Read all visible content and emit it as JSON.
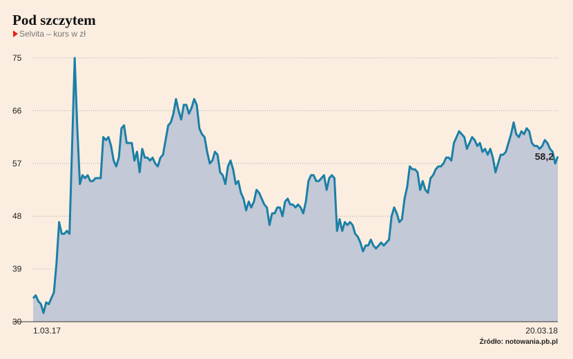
{
  "chart_data": {
    "type": "area",
    "title": "Pod szczytem",
    "subtitle": "Selvita – kurs w zł",
    "source": "Źródło: notowania.pb.pl",
    "color": "#1b7fa6",
    "fill": "#c3c9d6",
    "grid": true,
    "ylim": [
      30,
      75
    ],
    "yticks": [
      30,
      39,
      48,
      57,
      66,
      75
    ],
    "annotations": [
      {
        "text": "58,2",
        "value": 58.2
      }
    ],
    "categories": [
      "1.03.17",
      null,
      null,
      null,
      null,
      null,
      null,
      null,
      null,
      null,
      null,
      null,
      null,
      null,
      null,
      null,
      null,
      null,
      null,
      null,
      null,
      null,
      null,
      null,
      null,
      null,
      null,
      null,
      null,
      null,
      null,
      null,
      null,
      null,
      null,
      null,
      null,
      null,
      null,
      null,
      null,
      null,
      null,
      null,
      null,
      null,
      null,
      null,
      null,
      null,
      null,
      null,
      null,
      null,
      null,
      null,
      null,
      null,
      null,
      null,
      null,
      null,
      null,
      null,
      null,
      null,
      null,
      null,
      null,
      null,
      null,
      null,
      null,
      null,
      null,
      null,
      null,
      null,
      null,
      null,
      null,
      null,
      null,
      null,
      null,
      null,
      null,
      null,
      null,
      null,
      null,
      null,
      null,
      null,
      null,
      null,
      null,
      null,
      null,
      null,
      null,
      null,
      null,
      null,
      null,
      null,
      null,
      null,
      null,
      null,
      null,
      null,
      null,
      null,
      null,
      null,
      null,
      null,
      null,
      null,
      null,
      null,
      null,
      null,
      null,
      null,
      null,
      null,
      null,
      null,
      null,
      null,
      null,
      null,
      null,
      null,
      null,
      null,
      null,
      null,
      null,
      null,
      null,
      null,
      null,
      null,
      null,
      null,
      null,
      null,
      null,
      null,
      null,
      null,
      null,
      null,
      null,
      null,
      null,
      null,
      null,
      null,
      null,
      null,
      null,
      null,
      null,
      null,
      null,
      null,
      null,
      null,
      null,
      null,
      null,
      null,
      null,
      null,
      null,
      null,
      null,
      null,
      null,
      null,
      null,
      null,
      null,
      null,
      null,
      null,
      null,
      null,
      null,
      null,
      null,
      null,
      null,
      null,
      null,
      null,
      null,
      null,
      "20.03.18"
    ],
    "values": [
      34,
      34.5,
      33.5,
      33,
      31.5,
      33.3,
      33,
      34,
      35,
      40,
      47,
      45,
      45,
      45.5,
      45,
      60,
      75,
      63,
      53.5,
      55,
      54.5,
      55,
      54,
      54,
      54.5,
      54.5,
      54.5,
      61.5,
      61,
      61.5,
      60,
      57.5,
      56.5,
      58,
      63,
      63.5,
      60.5,
      60.5,
      60.5,
      57.5,
      59,
      55.5,
      59.5,
      58,
      58,
      57.5,
      58,
      57,
      56.5,
      58,
      58.5,
      61,
      63.5,
      64,
      65.5,
      68,
      66,
      64.5,
      67,
      67,
      65.5,
      66.5,
      68,
      67,
      63,
      62,
      61.5,
      59,
      57,
      57.5,
      59,
      58.5,
      55.5,
      55,
      53.5,
      56.5,
      57.5,
      56,
      53.5,
      54,
      52,
      51,
      49,
      50.5,
      49.5,
      50.5,
      52.5,
      52,
      51,
      50,
      49.5,
      46.5,
      48.5,
      48.5,
      49.5,
      49.5,
      48,
      50.5,
      51,
      50,
      50,
      49.5,
      50,
      49.5,
      48.5,
      50.5,
      54,
      55,
      55,
      54,
      54,
      54.5,
      55,
      52.5,
      54.5,
      55,
      54.5,
      45.5,
      47.5,
      45.5,
      47,
      46.5,
      47,
      46.5,
      45,
      44.5,
      43.5,
      42,
      43,
      43,
      44,
      43,
      42.5,
      43,
      43.5,
      43,
      43.5,
      44,
      48,
      49.5,
      48.5,
      47,
      47.5,
      51,
      53,
      56.5,
      56,
      56,
      55.5,
      52.5,
      54,
      52.5,
      52,
      54.5,
      55,
      56,
      56.5,
      56.5,
      57,
      58,
      58,
      57.5,
      60.5,
      61.5,
      62.5,
      62,
      61.5,
      59.5,
      60.5,
      61.5,
      61,
      60,
      60.5,
      59,
      59.5,
      58.5,
      59.5,
      58,
      55.5,
      57,
      58.5,
      58.5,
      59,
      60.5,
      62,
      64,
      62,
      61.5,
      62.5,
      62,
      63,
      62.5,
      60.5,
      60,
      60,
      59.5,
      60,
      61,
      60.5,
      59.5,
      59,
      57,
      58.2
    ]
  }
}
